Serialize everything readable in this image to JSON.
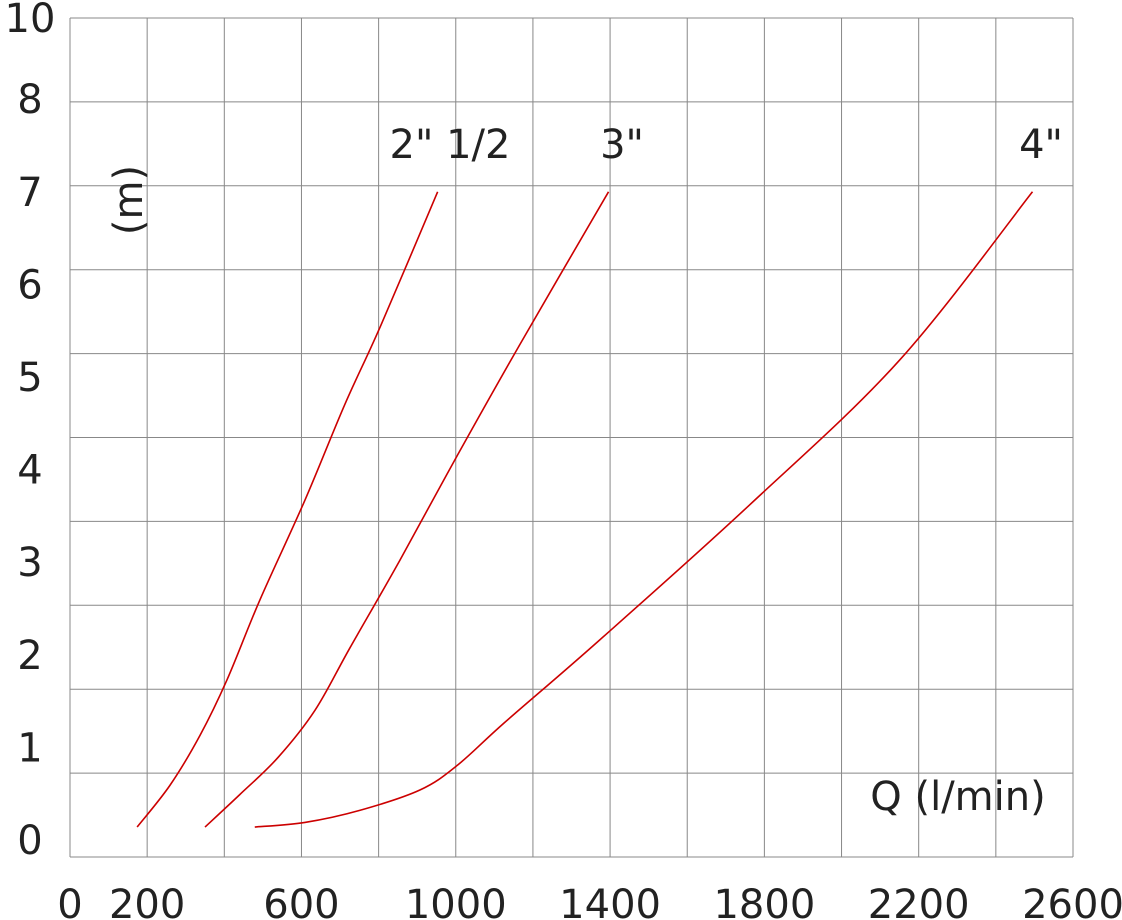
{
  "chart_data": {
    "type": "line",
    "title": "",
    "xlabel": "Q (l/min)",
    "ylabel": "(m)",
    "xlim": [
      0,
      2600
    ],
    "x_tick_labels": [
      "0",
      "200",
      "600",
      "1000",
      "1400",
      "1800",
      "2200",
      "2600"
    ],
    "y_tick_labels": [
      "0",
      "1",
      "2",
      "3",
      "4",
      "5",
      "6",
      "7",
      "8",
      "10"
    ],
    "grid": true,
    "line_color": "#cc0000",
    "grid_color": "#888888",
    "series": [
      {
        "name": "2\" 1/2",
        "x": [
          174,
          259,
          337,
          407,
          492,
          609,
          712,
          806,
          953
        ],
        "y": [
          0.14,
          0.59,
          1.13,
          1.73,
          2.59,
          3.67,
          4.7,
          5.56,
          7.0
        ]
      },
      {
        "name": "3\"",
        "x": [
          350,
          440,
          539,
          635,
          725,
          855,
          1005,
          1166,
          1396
        ],
        "y": [
          0.14,
          0.49,
          0.89,
          1.4,
          2.07,
          3.02,
          4.16,
          5.35,
          7.0
        ]
      },
      {
        "name": "4\"",
        "x": [
          479,
          609,
          751,
          907,
          1005,
          1127,
          1373,
          1762,
          2150,
          2495
        ],
        "y": [
          0.14,
          0.19,
          0.32,
          0.54,
          0.81,
          1.27,
          2.16,
          3.62,
          5.18,
          7.0
        ]
      }
    ]
  }
}
